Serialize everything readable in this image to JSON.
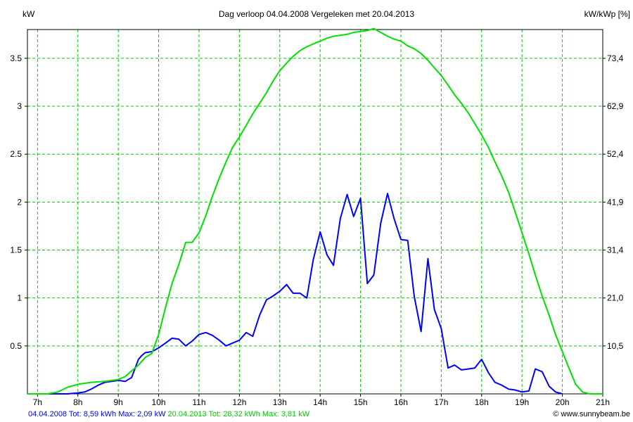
{
  "chart_data": {
    "type": "line",
    "title": "Dag  verloop 04.04.2008   Vergeleken met 20.04.2013",
    "ylabel_left": "kW",
    "ylabel_right": "kW/kWp [%]",
    "x_range": [
      6.75,
      21
    ],
    "ylim": [
      0,
      3.8
    ],
    "y_ticks": [
      0.5,
      1,
      1.5,
      2,
      2.5,
      3,
      3.5
    ],
    "y_tick_labels": [
      "0.5",
      "1",
      "1.5",
      "2",
      "2.5",
      "3",
      "3.5"
    ],
    "y_right_ticks": [
      0.5,
      1,
      1.5,
      2,
      2.5,
      3,
      3.5
    ],
    "y_right_tick_labels": [
      "10,5",
      "21,0",
      "31,4",
      "41,9",
      "52,4",
      "62,9",
      "73,4"
    ],
    "x_ticks": [
      7,
      8,
      9,
      10,
      11,
      12,
      13,
      14,
      15,
      16,
      17,
      18,
      19,
      20,
      21
    ],
    "x_tick_labels": [
      "7h",
      "8h",
      "9h",
      "10h",
      "11h",
      "12h",
      "13h",
      "14h",
      "15h",
      "16h",
      "17h",
      "18h",
      "19h",
      "20h",
      "21h"
    ],
    "grid": true,
    "series": [
      {
        "color": "#0000ff",
        "points": [
          [
            7.25,
            0
          ],
          [
            7.75,
            0
          ],
          [
            8.0,
            0.01
          ],
          [
            8.17,
            0.02
          ],
          [
            8.33,
            0.05
          ],
          [
            8.5,
            0.09
          ],
          [
            8.67,
            0.12
          ],
          [
            8.83,
            0.13
          ],
          [
            9.0,
            0.14
          ],
          [
            9.17,
            0.13
          ],
          [
            9.33,
            0.17
          ],
          [
            9.5,
            0.36
          ],
          [
            9.58,
            0.4
          ],
          [
            9.67,
            0.43
          ],
          [
            9.83,
            0.44
          ],
          [
            10.0,
            0.48
          ],
          [
            10.17,
            0.53
          ],
          [
            10.33,
            0.58
          ],
          [
            10.5,
            0.57
          ],
          [
            10.67,
            0.5
          ],
          [
            10.83,
            0.55
          ],
          [
            11.0,
            0.62
          ],
          [
            11.17,
            0.64
          ],
          [
            11.33,
            0.61
          ],
          [
            11.5,
            0.56
          ],
          [
            11.67,
            0.5
          ],
          [
            11.83,
            0.53
          ],
          [
            12.0,
            0.56
          ],
          [
            12.17,
            0.64
          ],
          [
            12.33,
            0.6
          ],
          [
            12.5,
            0.82
          ],
          [
            12.67,
            0.98
          ],
          [
            12.83,
            1.02
          ],
          [
            13.0,
            1.07
          ],
          [
            13.17,
            1.14
          ],
          [
            13.33,
            1.05
          ],
          [
            13.5,
            1.05
          ],
          [
            13.67,
            1.0
          ],
          [
            13.83,
            1.4
          ],
          [
            14.0,
            1.69
          ],
          [
            14.17,
            1.45
          ],
          [
            14.33,
            1.34
          ],
          [
            14.5,
            1.83
          ],
          [
            14.67,
            2.08
          ],
          [
            14.83,
            1.85
          ],
          [
            15.0,
            2.04
          ],
          [
            15.17,
            1.15
          ],
          [
            15.33,
            1.24
          ],
          [
            15.5,
            1.78
          ],
          [
            15.67,
            2.09
          ],
          [
            15.83,
            1.83
          ],
          [
            16.0,
            1.61
          ],
          [
            16.17,
            1.6
          ],
          [
            16.33,
            1.02
          ],
          [
            16.5,
            0.65
          ],
          [
            16.67,
            1.41
          ],
          [
            16.83,
            0.88
          ],
          [
            17.0,
            0.68
          ],
          [
            17.17,
            0.27
          ],
          [
            17.33,
            0.3
          ],
          [
            17.5,
            0.25
          ],
          [
            17.67,
            0.26
          ],
          [
            17.83,
            0.27
          ],
          [
            18.0,
            0.36
          ],
          [
            18.17,
            0.22
          ],
          [
            18.33,
            0.12
          ],
          [
            18.5,
            0.09
          ],
          [
            18.67,
            0.05
          ],
          [
            18.83,
            0.04
          ],
          [
            19.0,
            0.02
          ],
          [
            19.17,
            0.03
          ],
          [
            19.33,
            0.26
          ],
          [
            19.5,
            0.23
          ],
          [
            19.67,
            0.08
          ],
          [
            19.83,
            0.02
          ],
          [
            20.0,
            0
          ]
        ]
      },
      {
        "color": "#00e000",
        "points": [
          [
            6.75,
            0
          ],
          [
            7.25,
            0
          ],
          [
            7.5,
            0.02
          ],
          [
            7.75,
            0.07
          ],
          [
            8.0,
            0.1
          ],
          [
            8.33,
            0.12
          ],
          [
            8.67,
            0.13
          ],
          [
            9.0,
            0.15
          ],
          [
            9.17,
            0.18
          ],
          [
            9.33,
            0.24
          ],
          [
            9.5,
            0.3
          ],
          [
            9.67,
            0.38
          ],
          [
            9.83,
            0.42
          ],
          [
            10.0,
            0.62
          ],
          [
            10.17,
            0.9
          ],
          [
            10.33,
            1.15
          ],
          [
            10.5,
            1.35
          ],
          [
            10.67,
            1.58
          ],
          [
            10.83,
            1.58
          ],
          [
            11.0,
            1.68
          ],
          [
            11.17,
            1.86
          ],
          [
            11.33,
            2.06
          ],
          [
            11.5,
            2.25
          ],
          [
            11.67,
            2.42
          ],
          [
            11.83,
            2.57
          ],
          [
            12.0,
            2.68
          ],
          [
            12.17,
            2.8
          ],
          [
            12.33,
            2.92
          ],
          [
            12.5,
            3.03
          ],
          [
            12.67,
            3.14
          ],
          [
            12.83,
            3.26
          ],
          [
            13.0,
            3.37
          ],
          [
            13.17,
            3.45
          ],
          [
            13.33,
            3.52
          ],
          [
            13.5,
            3.58
          ],
          [
            13.67,
            3.62
          ],
          [
            13.83,
            3.65
          ],
          [
            14.0,
            3.68
          ],
          [
            14.17,
            3.71
          ],
          [
            14.33,
            3.73
          ],
          [
            14.5,
            3.74
          ],
          [
            14.67,
            3.75
          ],
          [
            14.83,
            3.77
          ],
          [
            15.0,
            3.78
          ],
          [
            15.17,
            3.79
          ],
          [
            15.33,
            3.81
          ],
          [
            15.5,
            3.77
          ],
          [
            15.67,
            3.73
          ],
          [
            15.83,
            3.7
          ],
          [
            16.0,
            3.68
          ],
          [
            16.17,
            3.63
          ],
          [
            16.33,
            3.6
          ],
          [
            16.5,
            3.55
          ],
          [
            16.67,
            3.48
          ],
          [
            16.83,
            3.4
          ],
          [
            17.0,
            3.32
          ],
          [
            17.17,
            3.22
          ],
          [
            17.33,
            3.12
          ],
          [
            17.5,
            3.03
          ],
          [
            17.67,
            2.93
          ],
          [
            17.83,
            2.82
          ],
          [
            18.0,
            2.7
          ],
          [
            18.17,
            2.57
          ],
          [
            18.33,
            2.42
          ],
          [
            18.5,
            2.27
          ],
          [
            18.67,
            2.1
          ],
          [
            18.83,
            1.9
          ],
          [
            19.0,
            1.68
          ],
          [
            19.17,
            1.46
          ],
          [
            19.33,
            1.24
          ],
          [
            19.5,
            1.02
          ],
          [
            19.67,
            0.82
          ],
          [
            19.83,
            0.62
          ],
          [
            20.0,
            0.44
          ],
          [
            20.17,
            0.26
          ],
          [
            20.33,
            0.1
          ],
          [
            20.5,
            0.02
          ],
          [
            20.67,
            0
          ],
          [
            21.0,
            0
          ]
        ]
      }
    ]
  },
  "footer": {
    "series1_summary": "04.04.2008 Tot: 8,59 kWh Max: 2,09 kW",
    "series2_summary": "20.04.2013 Tot: 28,32 kWh Max: 3,81 kW",
    "credit": "© www.sunnybeam.be"
  }
}
